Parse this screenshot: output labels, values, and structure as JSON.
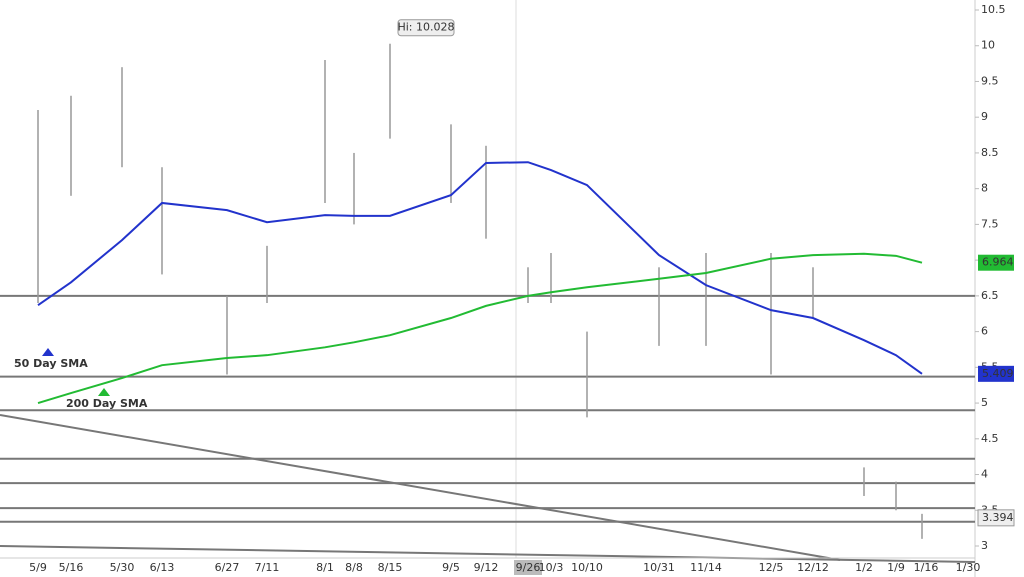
{
  "chart_data": {
    "type": "line",
    "categories": [
      "5/9",
      "5/16",
      "5/30",
      "6/13",
      "6/27",
      "7/11",
      "8/1",
      "8/8",
      "8/15",
      "9/5",
      "9/12",
      "9/26",
      "10/3",
      "10/10",
      "10/31",
      "11/14",
      "12/5",
      "12/12",
      "1/2",
      "1/9",
      "1/16",
      "1/30"
    ],
    "ylim": [
      3,
      10.5
    ],
    "yticks": [
      3,
      3.5,
      4,
      4.5,
      5,
      5.5,
      6,
      6.5,
      7,
      7.5,
      8,
      8.5,
      9,
      9.5,
      10,
      10.5
    ],
    "price": {
      "color": "#999999",
      "high": [
        9.1,
        9.3,
        9.7,
        8.3,
        6.5,
        7.2,
        9.8,
        8.5,
        10.028,
        8.9,
        8.6,
        6.9,
        7.1,
        6.0,
        6.9,
        7.1,
        7.1,
        6.9,
        4.1,
        3.9,
        3.45,
        null
      ],
      "low": [
        6.4,
        7.9,
        8.3,
        6.8,
        5.4,
        6.4,
        7.8,
        7.5,
        8.7,
        7.8,
        7.3,
        6.4,
        6.4,
        4.8,
        5.8,
        5.8,
        5.4,
        6.2,
        3.7,
        3.5,
        3.1,
        null
      ],
      "last": 3.394
    },
    "series": [
      {
        "name": "50 Day SMA",
        "color": "#2233cc",
        "values": [
          6.37,
          6.69,
          7.28,
          7.8,
          7.7,
          7.53,
          7.63,
          7.62,
          7.62,
          7.91,
          8.36,
          8.37,
          8.26,
          8.05,
          7.07,
          6.65,
          6.3,
          6.19,
          5.88,
          5.67,
          5.409,
          null
        ],
        "last": 5.409
      },
      {
        "name": "200 Day SMA",
        "color": "#22bb33",
        "values": [
          5.0,
          5.14,
          5.35,
          5.53,
          5.63,
          5.67,
          5.78,
          5.85,
          5.95,
          6.19,
          6.36,
          6.5,
          6.55,
          6.62,
          6.74,
          6.82,
          7.02,
          7.07,
          7.09,
          7.06,
          6.964,
          null
        ],
        "last": 6.964
      }
    ],
    "levels": [
      6.5,
      5.37,
      4.9,
      4.22,
      3.88,
      3.53,
      3.34
    ],
    "annotation": "Hi: 10.028",
    "highlight_category": "9/26"
  }
}
